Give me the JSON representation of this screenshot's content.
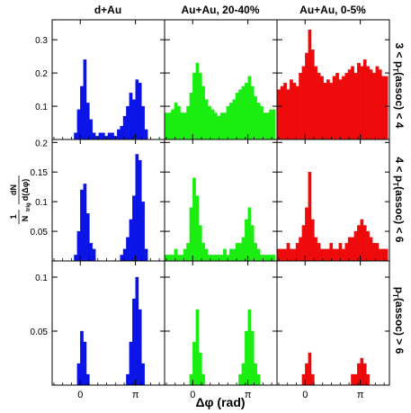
{
  "figure": {
    "column_titles": [
      "d+Au",
      "Au+Au, 20-40%",
      "Au+Au, 0-5%"
    ],
    "row_labels": [
      [
        "3 < p",
        "T",
        "(assoc) < 4"
      ],
      [
        "4 < p",
        "T",
        "(assoc) < 6"
      ],
      [
        "p",
        "T",
        "(assoc) > 6"
      ]
    ],
    "ylabel": {
      "prefix": "1",
      "denom_main": "N",
      "denom_sub": "trig",
      "numer": "dN",
      "denom2": "d(Δφ)"
    },
    "xlabel": "Δφ (rad)",
    "x_tick_labels": [
      "0",
      "π"
    ],
    "y_tick_labels": [
      [
        "0.1",
        "0.2",
        "0.3"
      ],
      [
        "0.05",
        "0.1",
        "0.15",
        "0.2"
      ],
      [
        "0.05",
        "0.1"
      ]
    ],
    "colors": {
      "col0": "#0a14e6",
      "col1": "#1aee10",
      "col2": "#ee0a0a",
      "axes": "#000000"
    }
  },
  "chart_data": {
    "type": "bar",
    "description_axes": {
      "x": "Δφ (rad)",
      "xlim": [
        -1.6,
        4.8
      ],
      "x_ticks": [
        0,
        3.1416
      ]
    },
    "nbins": 36,
    "bin_edges_range": [
      -1.5708,
      4.7124
    ],
    "rows": [
      {
        "label": "3 < pT(assoc) < 4",
        "ylim": [
          0,
          0.36
        ],
        "panels": [
          {
            "name": "d+Au",
            "values": [
              0,
              0,
              0,
              0,
              0,
              0,
              0,
              0.02,
              0.09,
              0.16,
              0.24,
              0.11,
              0.06,
              0.02,
              0.01,
              0.02,
              0.02,
              0.01,
              0.02,
              0.02,
              0.01,
              0.03,
              0.04,
              0.07,
              0.1,
              0.14,
              0.12,
              0.18,
              0.17,
              0.1,
              0.03,
              0,
              0,
              0,
              0,
              0
            ]
          },
          {
            "name": "Au+Au, 20-40%",
            "values": [
              0.08,
              0.08,
              0.09,
              0.11,
              0.1,
              0.08,
              0.08,
              0.1,
              0.14,
              0.2,
              0.23,
              0.2,
              0.16,
              0.12,
              0.1,
              0.09,
              0.08,
              0.07,
              0.08,
              0.08,
              0.1,
              0.11,
              0.12,
              0.14,
              0.15,
              0.16,
              0.17,
              0.19,
              0.16,
              0.13,
              0.11,
              0.1,
              0.08,
              0.08,
              0.09,
              0.09
            ]
          },
          {
            "name": "Au+Au, 0-5%",
            "values": [
              0.15,
              0.16,
              0.17,
              0.15,
              0.18,
              0.17,
              0.16,
              0.2,
              0.22,
              0.26,
              0.33,
              0.27,
              0.22,
              0.2,
              0.19,
              0.17,
              0.18,
              0.17,
              0.19,
              0.2,
              0.18,
              0.19,
              0.2,
              0.21,
              0.22,
              0.2,
              0.23,
              0.22,
              0.24,
              0.22,
              0.21,
              0.2,
              0.22,
              0.21,
              0.19,
              0.19
            ]
          }
        ]
      },
      {
        "label": "4 < pT(assoc) < 6",
        "ylim": [
          0,
          0.205
        ],
        "panels": [
          {
            "name": "d+Au",
            "values": [
              0,
              0,
              0,
              0,
              0,
              0,
              0,
              0.01,
              0.05,
              0.12,
              0.13,
              0.08,
              0.03,
              0.02,
              0,
              0,
              0,
              0,
              0,
              0,
              0,
              0,
              0.01,
              0.02,
              0.04,
              0.07,
              0.11,
              0.18,
              0.17,
              0.1,
              0.02,
              0,
              0,
              0,
              0,
              0
            ]
          },
          {
            "name": "Au+Au, 20-40%",
            "values": [
              0.01,
              0.01,
              0.01,
              0.02,
              0.01,
              0.01,
              0.02,
              0.03,
              0.09,
              0.14,
              0.11,
              0.06,
              0.03,
              0.02,
              0.01,
              0.01,
              0.01,
              0.01,
              0.01,
              0.02,
              0.01,
              0.02,
              0.02,
              0.03,
              0.03,
              0.04,
              0.07,
              0.09,
              0.06,
              0.03,
              0.02,
              0.01,
              0.01,
              0.01,
              0.01,
              0.01
            ]
          },
          {
            "name": "Au+Au, 0-5%",
            "values": [
              0.02,
              0.02,
              0.02,
              0.03,
              0.02,
              0.02,
              0.03,
              0.04,
              0.06,
              0.09,
              0.15,
              0.07,
              0.04,
              0.03,
              0.02,
              0.02,
              0.02,
              0.03,
              0.02,
              0.02,
              0.03,
              0.02,
              0.03,
              0.04,
              0.04,
              0.05,
              0.06,
              0.07,
              0.06,
              0.05,
              0.04,
              0.03,
              0.03,
              0.02,
              0.02,
              0.02
            ]
          }
        ]
      },
      {
        "label": "pT(assoc) > 6",
        "ylim": [
          0,
          0.115
        ],
        "panels": [
          {
            "name": "d+Au",
            "values": [
              0,
              0,
              0,
              0,
              0,
              0,
              0,
              0,
              0.02,
              0.05,
              0.04,
              0.01,
              0,
              0,
              0,
              0,
              0,
              0,
              0,
              0,
              0,
              0,
              0,
              0,
              0.01,
              0.04,
              0.08,
              0.1,
              0.07,
              0.02,
              0,
              0,
              0,
              0,
              0,
              0
            ]
          },
          {
            "name": "Au+Au, 20-40%",
            "values": [
              0,
              0,
              0,
              0,
              0,
              0,
              0,
              0,
              0.01,
              0.04,
              0.07,
              0.03,
              0.01,
              0,
              0,
              0,
              0,
              0,
              0,
              0,
              0,
              0,
              0,
              0,
              0.01,
              0.02,
              0.05,
              0.07,
              0.05,
              0.02,
              0.01,
              0,
              0,
              0,
              0,
              0
            ]
          },
          {
            "name": "Au+Au, 0-5%",
            "values": [
              0,
              0,
              0,
              0,
              0,
              0,
              0,
              0,
              0.01,
              0.02,
              0.03,
              0.01,
              0,
              0,
              0,
              0,
              0,
              0,
              0,
              0,
              0,
              0,
              0,
              0,
              0.01,
              0.01,
              0.02,
              0.025,
              0.02,
              0.01,
              0,
              0,
              0,
              0,
              0,
              0
            ]
          }
        ]
      }
    ]
  }
}
